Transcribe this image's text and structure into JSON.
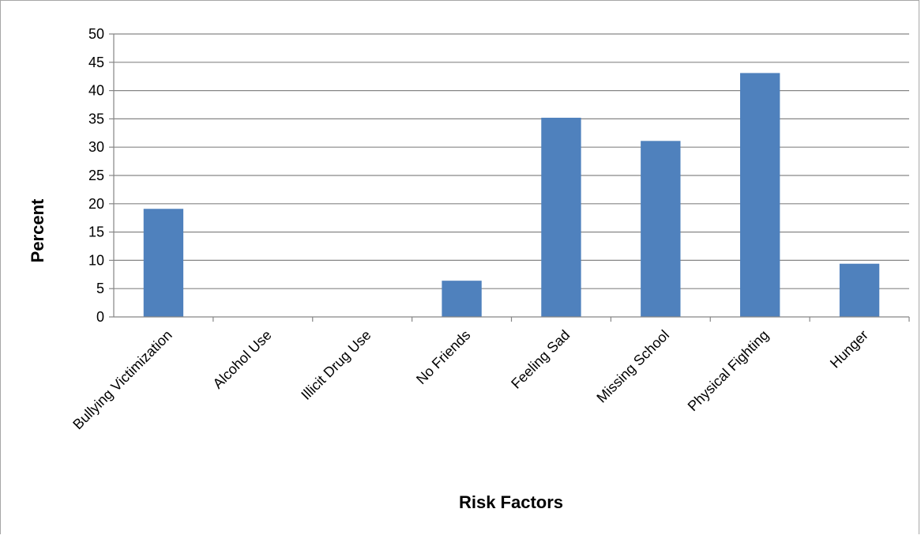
{
  "chart_data": {
    "type": "bar",
    "categories": [
      "Bullying Victimization",
      "Alcohol Use",
      "Illicit Drug Use",
      "No Friends",
      "Feeling Sad",
      "Missing School",
      "Physical Fighting",
      "Hunger"
    ],
    "values": [
      19.1,
      0,
      0,
      6.4,
      35.2,
      31.1,
      43.1,
      9.4
    ],
    "xlabel": "Risk Factors",
    "ylabel": "Percent",
    "ylim": [
      0,
      50
    ],
    "yticks": [
      "0",
      "5",
      "10",
      "15",
      "20",
      "25",
      "30",
      "35",
      "40",
      "45",
      "50"
    ],
    "grid": true,
    "legend": "none",
    "bar_color": "#4f81bd",
    "gridline_color": "#868686"
  }
}
